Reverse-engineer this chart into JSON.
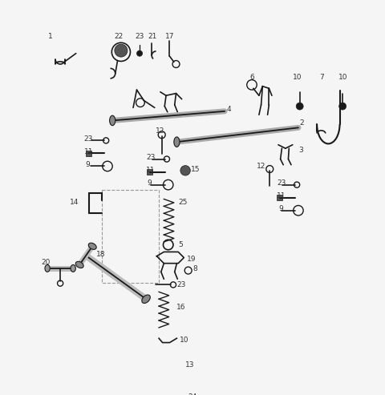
{
  "bg_color": "#f0f0f0",
  "line_color": "#1a1a1a",
  "label_color": "#333333",
  "label_fontsize": 6.5,
  "fig_width": 4.8,
  "fig_height": 4.93,
  "dpi": 100
}
